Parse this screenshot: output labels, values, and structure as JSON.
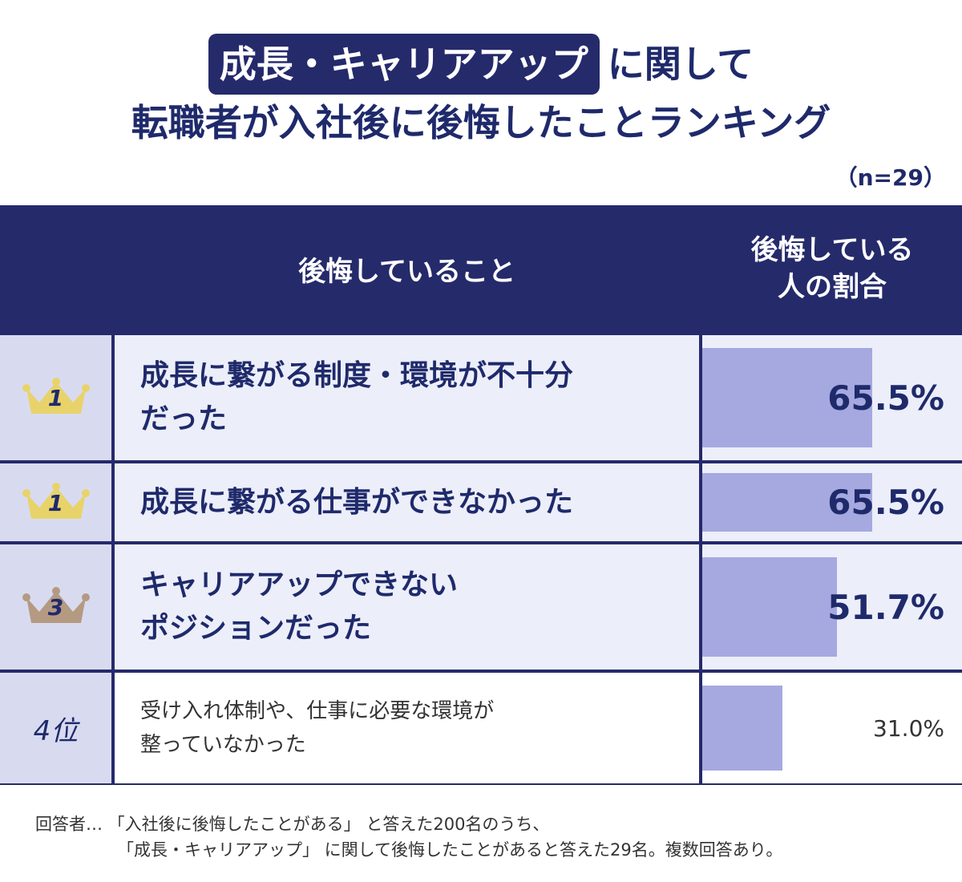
{
  "title": {
    "highlight": "成長・キャリアアップ",
    "line1_rest": "に関して",
    "line2": "転職者が入社後に後悔したことランキング"
  },
  "sample_size": "（n=29）",
  "table": {
    "header_item": "後悔していること",
    "header_pct_line1": "後悔している",
    "header_pct_line2": "人の割合"
  },
  "chart_data": {
    "type": "bar",
    "orientation": "horizontal",
    "title": "成長・キャリアアップに関して転職者が入社後に後悔したことランキング",
    "xlim": [
      0,
      100
    ],
    "rows": [
      {
        "rank": "1",
        "rank_style": "gold-crown",
        "label_lines": [
          "成長に繋がる制度・環境が不十分",
          "だった"
        ],
        "value": 65.5,
        "value_label": "65.5%"
      },
      {
        "rank": "1",
        "rank_style": "gold-crown",
        "label_lines": [
          "成長に繋がる仕事ができなかった"
        ],
        "value": 65.5,
        "value_label": "65.5%"
      },
      {
        "rank": "3",
        "rank_style": "bronze-crown",
        "label_lines": [
          "キャリアアップできない",
          "ポジションだった"
        ],
        "value": 51.7,
        "value_label": "51.7%"
      },
      {
        "rank": "4位",
        "rank_style": "plain",
        "label_lines": [
          "受け入れ体制や、仕事に必要な環境が",
          "整っていなかった"
        ],
        "value": 31.0,
        "value_label": "31.0%"
      }
    ]
  },
  "colors": {
    "navy": "#252a6b",
    "bar": "#a5a9e0",
    "gold_crown": "#e8d36a",
    "bronze_crown": "#b59a82"
  },
  "footnote": {
    "line1": "回答者… 「入社後に後悔したことがある」 と答えた200名のうち、",
    "line2": "「成長・キャリアアップ」 に関して後悔したことがあると答えた29名。複数回答あり。"
  }
}
